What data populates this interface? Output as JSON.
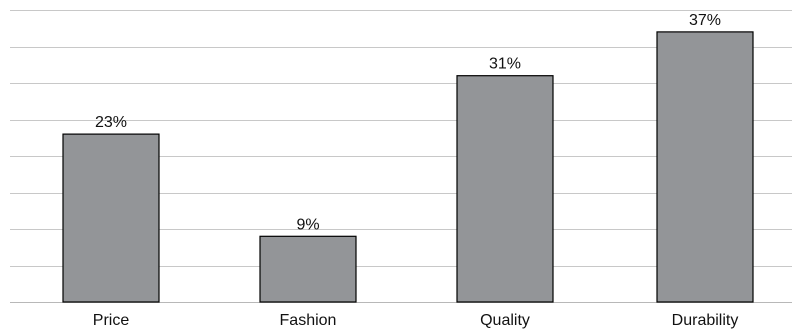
{
  "chart_data": {
    "type": "bar",
    "title": "",
    "xlabel": "",
    "ylabel": "",
    "categories": [
      "Price",
      "Fashion",
      "Quality",
      "Durability"
    ],
    "values": [
      23,
      9,
      31,
      37
    ],
    "data_labels": [
      "23%",
      "9%",
      "31%",
      "37%"
    ],
    "unit": "%",
    "ylim": [
      0,
      40
    ],
    "grid": true,
    "legend": "none",
    "colors": {
      "bar_fill": "#939598",
      "bar_stroke": "#000000",
      "gridline": "#c8c8c8"
    }
  }
}
